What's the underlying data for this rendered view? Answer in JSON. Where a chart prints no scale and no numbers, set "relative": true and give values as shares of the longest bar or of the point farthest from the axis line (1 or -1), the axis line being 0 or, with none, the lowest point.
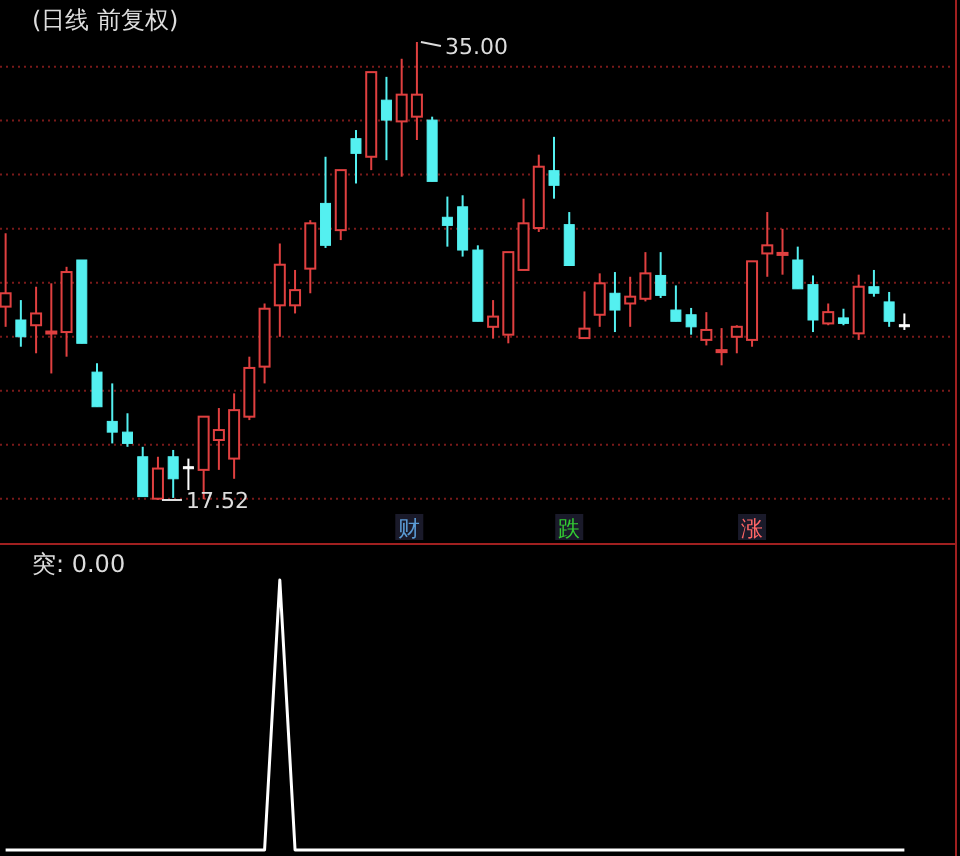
{
  "chart_data": [
    {
      "type": "candlestick",
      "title": "(日线 前复权)",
      "categories": [
        null,
        null,
        null,
        null,
        null,
        null,
        null,
        null,
        null,
        null,
        null,
        null,
        null,
        null,
        null,
        null,
        null,
        null,
        null,
        null,
        null,
        null,
        null,
        null,
        null,
        null,
        null,
        null,
        null,
        null,
        null,
        null,
        null,
        null,
        null,
        null,
        null,
        null,
        null,
        null,
        null,
        null,
        null,
        null,
        null,
        null,
        null,
        null,
        null,
        null,
        null,
        null,
        null,
        null,
        null,
        null,
        null,
        null,
        null,
        null
      ],
      "ohlc": [
        [
          24.9,
          27.7,
          24.13,
          25.41
        ],
        [
          24.39,
          25.15,
          23.37,
          23.75
        ],
        [
          24.19,
          25.66,
          23.12,
          24.64
        ],
        [
          23.93,
          25.79,
          22.35,
          23.95
        ],
        [
          23.93,
          26.42,
          22.99,
          26.22
        ],
        [
          26.68,
          26.68,
          23.5,
          23.5
        ],
        [
          22.4,
          22.74,
          21.08,
          21.08
        ],
        [
          20.52,
          21.97,
          19.68,
          20.11
        ],
        [
          20.11,
          20.83,
          19.55,
          19.68
        ],
        [
          19.17,
          19.55,
          17.65,
          17.65
        ],
        [
          17.57,
          19.17,
          17.52,
          18.72
        ],
        [
          19.17,
          19.43,
          17.6,
          18.33
        ],
        [
          18.79,
          19.1,
          17.9,
          18.79
        ],
        [
          18.67,
          20.7,
          17.55,
          20.7
        ],
        [
          19.81,
          21.03,
          18.67,
          20.19
        ],
        [
          19.1,
          21.59,
          18.33,
          20.95
        ],
        [
          20.7,
          22.99,
          20.57,
          22.56
        ],
        [
          22.61,
          25.02,
          21.97,
          24.82
        ],
        [
          24.95,
          27.31,
          23.75,
          26.5
        ],
        [
          24.95,
          26.3,
          24.64,
          25.53
        ],
        [
          26.35,
          28.2,
          25.41,
          28.08
        ],
        [
          28.84,
          30.62,
          27.14,
          27.24
        ],
        [
          27.82,
          30.11,
          27.44,
          30.11
        ],
        [
          31.31,
          31.64,
          29.6,
          30.75
        ],
        [
          30.62,
          33.85,
          30.11,
          33.85
        ],
        [
          32.78,
          33.67,
          30.49,
          32.02
        ],
        [
          31.97,
          34.36,
          29.86,
          32.99
        ],
        [
          32.15,
          35.0,
          31.26,
          32.99
        ],
        [
          32.02,
          32.15,
          29.68,
          29.68
        ],
        [
          28.31,
          29.1,
          27.19,
          28.0
        ],
        [
          28.71,
          29.15,
          26.81,
          27.06
        ],
        [
          27.06,
          27.24,
          24.34,
          24.34
        ],
        [
          24.13,
          25.15,
          23.68,
          24.52
        ],
        [
          23.83,
          26.98,
          23.5,
          26.98
        ],
        [
          26.3,
          29.02,
          26.3,
          28.08
        ],
        [
          27.9,
          30.7,
          27.75,
          30.24
        ],
        [
          30.09,
          31.38,
          29.02,
          29.53
        ],
        [
          28.03,
          28.51,
          26.47,
          26.47
        ],
        [
          23.7,
          25.48,
          23.7,
          24.06
        ],
        [
          24.59,
          26.17,
          24.13,
          25.79
        ],
        [
          25.41,
          26.22,
          23.93,
          24.77
        ],
        [
          25.02,
          26.04,
          24.13,
          25.28
        ],
        [
          25.2,
          26.98,
          25.1,
          26.17
        ],
        [
          26.09,
          26.98,
          25.23,
          25.33
        ],
        [
          24.77,
          25.71,
          24.34,
          24.34
        ],
        [
          24.59,
          24.85,
          23.83,
          24.13
        ],
        [
          23.63,
          24.69,
          23.42,
          24.01
        ],
        [
          23.22,
          24.08,
          22.66,
          23.24
        ],
        [
          23.75,
          24.19,
          23.12,
          24.13
        ],
        [
          23.63,
          26.63,
          23.37,
          26.63
        ],
        [
          26.93,
          28.51,
          26.04,
          27.24
        ],
        [
          26.93,
          27.87,
          26.12,
          26.95
        ],
        [
          26.68,
          27.19,
          25.58,
          25.58
        ],
        [
          25.74,
          26.09,
          23.93,
          24.39
        ],
        [
          24.26,
          25.02,
          24.19,
          24.69
        ],
        [
          24.47,
          24.82,
          24.19,
          24.26
        ],
        [
          23.88,
          26.12,
          23.63,
          25.66
        ],
        [
          25.66,
          26.3,
          25.28,
          25.41
        ],
        [
          25.08,
          25.46,
          24.13,
          24.34
        ],
        [
          24.21,
          24.64,
          24.01,
          24.21
        ]
      ],
      "colors": [
        "#e04040",
        "#54f0f0",
        "#e04040",
        "#e04040",
        "#e04040",
        "#54f0f0",
        "#54f0f0",
        "#54f0f0",
        "#54f0f0",
        "#54f0f0",
        "#e04040",
        "#54f0f0",
        "#ffffff",
        "#e04040",
        "#e04040",
        "#e04040",
        "#e04040",
        "#e04040",
        "#e04040",
        "#e04040",
        "#e04040",
        "#54f0f0",
        "#e04040",
        "#54f0f0",
        "#e04040",
        "#54f0f0",
        "#e04040",
        "#e04040",
        "#54f0f0",
        "#54f0f0",
        "#54f0f0",
        "#54f0f0",
        "#e04040",
        "#e04040",
        "#e04040",
        "#e04040",
        "#54f0f0",
        "#54f0f0",
        "#e04040",
        "#e04040",
        "#54f0f0",
        "#e04040",
        "#e04040",
        "#54f0f0",
        "#54f0f0",
        "#54f0f0",
        "#e04040",
        "#e04040",
        "#e04040",
        "#e04040",
        "#e04040",
        "#e04040",
        "#54f0f0",
        "#54f0f0",
        "#e04040",
        "#54f0f0",
        "#e04040",
        "#54f0f0",
        "#54f0f0",
        "#ffffff"
      ],
      "yticks": [
        {
          "value": 34.06,
          "label": null
        },
        {
          "value": 32.0,
          "label": null
        },
        {
          "value": 29.94,
          "label": null
        },
        {
          "value": 27.87,
          "label": null
        },
        {
          "value": 25.81,
          "label": null
        },
        {
          "value": 23.75,
          "label": null
        },
        {
          "value": 21.69,
          "label": null
        },
        {
          "value": 19.63,
          "label": null
        },
        {
          "value": 17.57,
          "label": null
        }
      ],
      "grid": "y",
      "annotations": [
        "35.00",
        "17.52",
        "财",
        "跌",
        "涨"
      ]
    },
    {
      "type": "line",
      "title": "突: 0.00",
      "categories": [
        null,
        null,
        null,
        null,
        null,
        null,
        null,
        null,
        null,
        null,
        null,
        null,
        null,
        null,
        null,
        null,
        null,
        null,
        null,
        null,
        null,
        null,
        null,
        null,
        null,
        null,
        null,
        null,
        null,
        null,
        null,
        null,
        null,
        null,
        null,
        null,
        null,
        null,
        null,
        null,
        null,
        null,
        null,
        null,
        null,
        null,
        null,
        null,
        null,
        null,
        null,
        null,
        null,
        null,
        null,
        null,
        null,
        null,
        null,
        null
      ],
      "values": [
        0,
        0,
        0,
        0,
        0,
        0,
        0,
        0,
        0,
        0,
        0,
        0,
        0,
        0,
        0,
        0,
        0,
        0,
        1,
        0,
        0,
        0,
        0,
        0,
        0,
        0,
        0,
        0,
        0,
        0,
        0,
        0,
        0,
        0,
        0,
        0,
        0,
        0,
        0,
        0,
        0,
        0,
        0,
        0,
        0,
        0,
        0,
        0,
        0,
        0,
        0,
        0,
        0,
        0,
        0,
        0,
        0,
        0,
        0,
        0
      ],
      "color": "#ffffff",
      "relative": true
    }
  ]
}
